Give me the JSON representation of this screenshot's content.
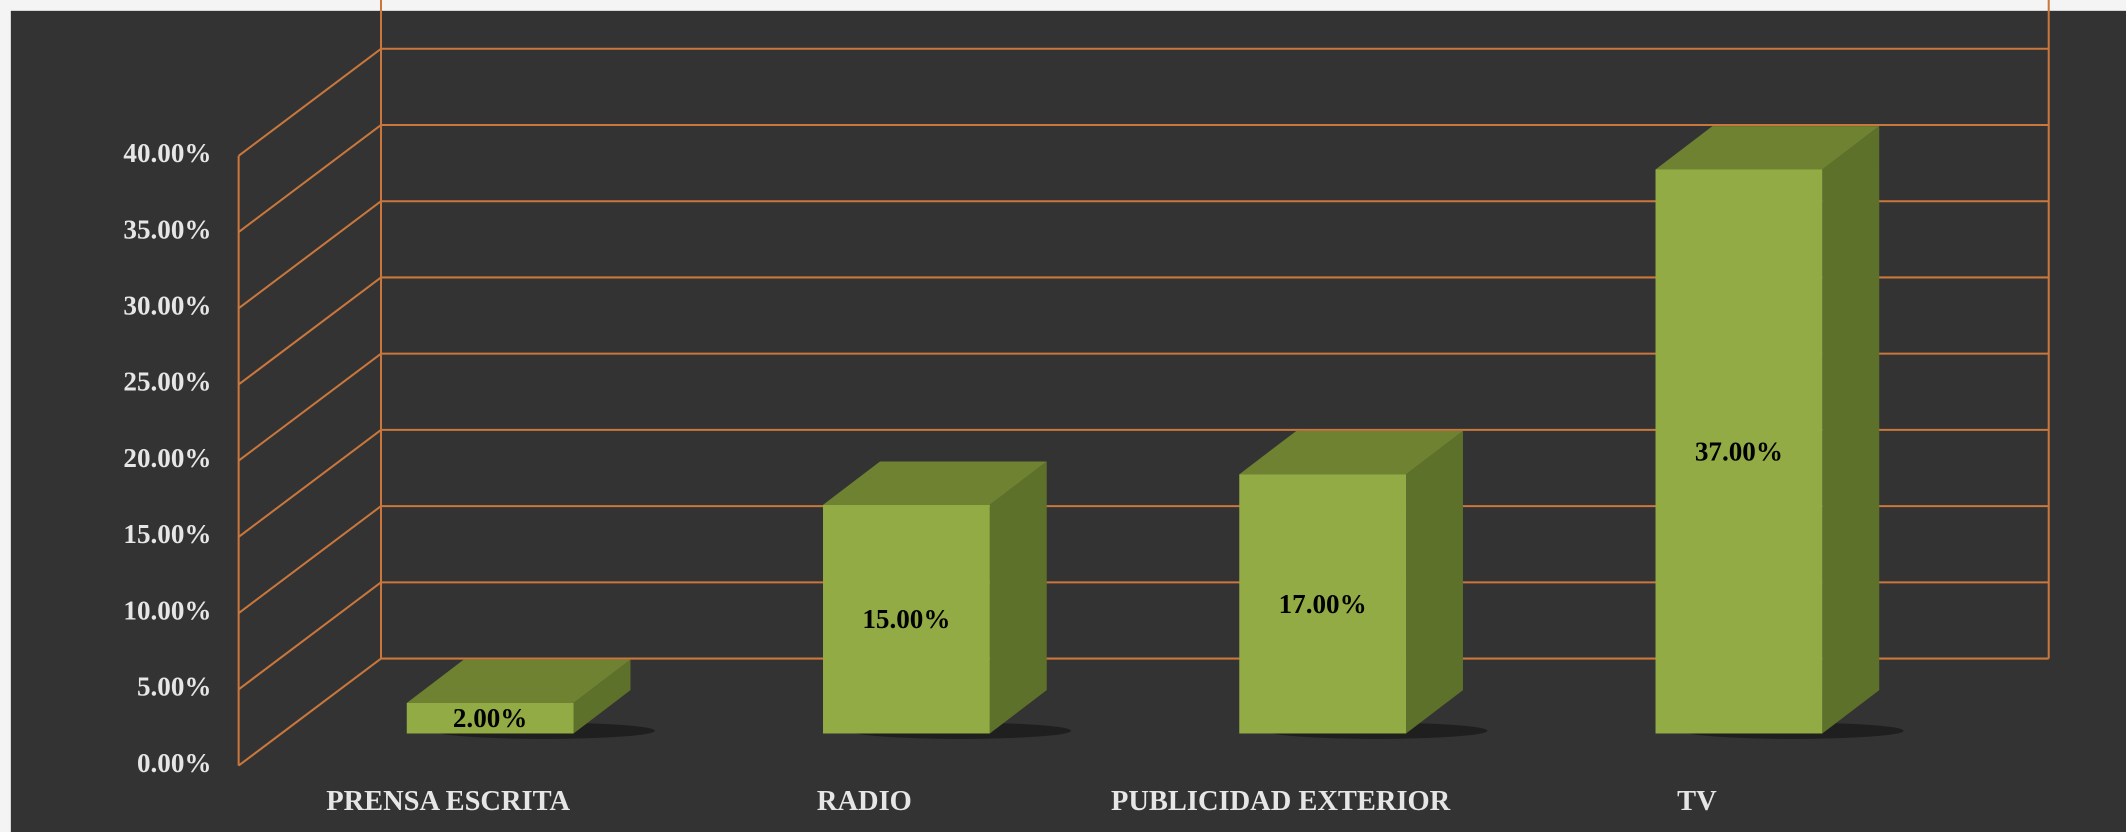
{
  "chart_data": {
    "type": "bar3d",
    "categories": [
      "PRENSA ESCRITA",
      "RADIO",
      "PUBLICIDAD EXTERIOR",
      "TV"
    ],
    "values": [
      2,
      15,
      17,
      37
    ],
    "value_labels": [
      "2.00%",
      "15.00%",
      "17.00%",
      "37.00%"
    ],
    "color": "#93ab45",
    "ylim": [
      0,
      40
    ],
    "yticks": [
      {
        "value": 0,
        "label": "0.00%"
      },
      {
        "value": 5,
        "label": "5.00%"
      },
      {
        "value": 10,
        "label": "10.00%"
      },
      {
        "value": 15,
        "label": "15.00%"
      },
      {
        "value": 20,
        "label": "20.00%"
      },
      {
        "value": 25,
        "label": "25.00%"
      },
      {
        "value": 30,
        "label": "30.00%"
      },
      {
        "value": 35,
        "label": "35.00%"
      },
      {
        "value": 40,
        "label": "40.00%"
      }
    ],
    "grid": true
  }
}
